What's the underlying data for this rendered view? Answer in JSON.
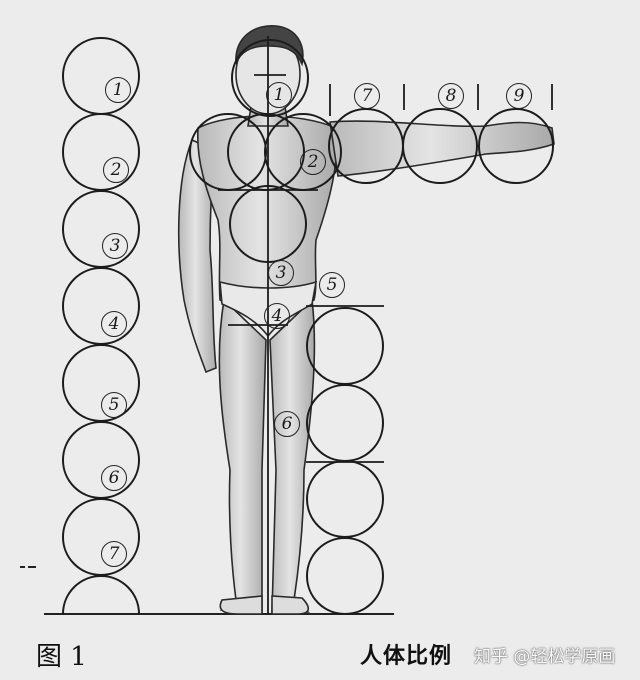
{
  "circle_labels": {
    "column": [
      "1",
      "2",
      "3",
      "4",
      "5",
      "6",
      "7"
    ],
    "body": [
      "1",
      "2",
      "3",
      "4",
      "5",
      "6"
    ],
    "arm": [
      "7",
      "8",
      "9"
    ]
  },
  "caption": {
    "figure": "图 1",
    "title": "人体比例",
    "watermark": "知乎 @轻松学原画"
  }
}
